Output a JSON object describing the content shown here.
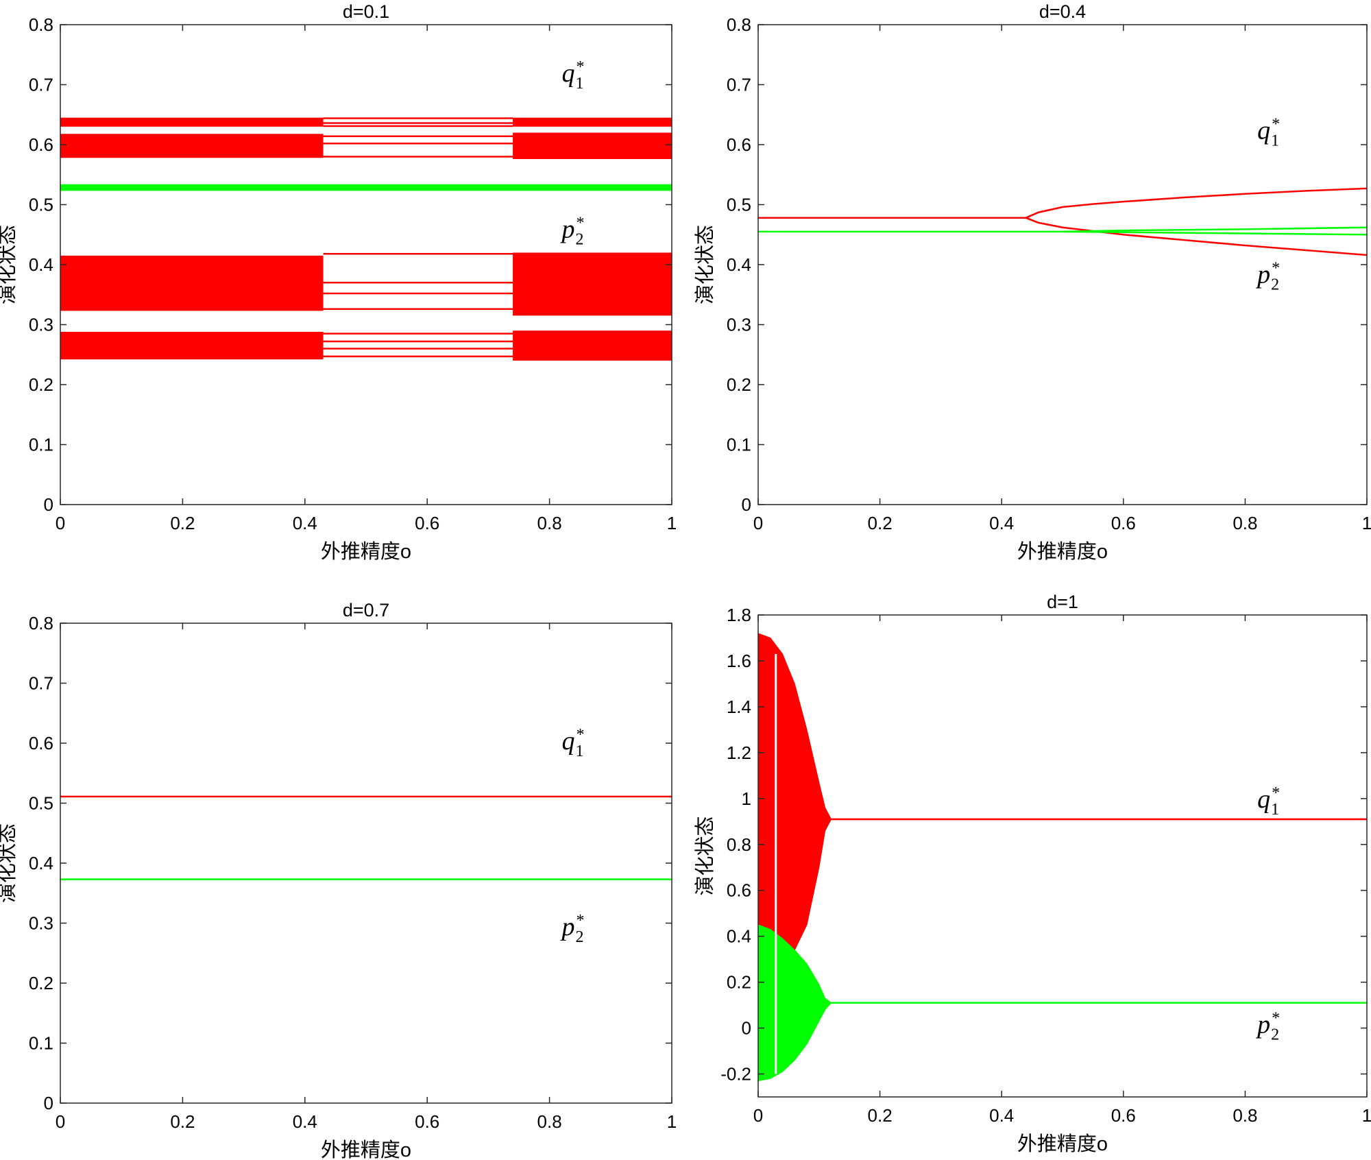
{
  "colors": {
    "q": "#ff0000",
    "p": "#00ff00",
    "axes": "#262626"
  },
  "chart_data": [
    {
      "type": "scatter",
      "title": "d=0.1",
      "xlabel": "外推精度o",
      "ylabel": "演化状态",
      "xlim": [
        0,
        1
      ],
      "ylim": [
        0,
        0.8
      ],
      "xticks": [
        "0",
        "0.2",
        "0.4",
        "0.6",
        "0.8",
        "1"
      ],
      "yticks": [
        "0",
        "0.1",
        "0.2",
        "0.3",
        "0.4",
        "0.5",
        "0.6",
        "0.7",
        "0.8"
      ],
      "grid": false,
      "annotations": [
        {
          "base": "q",
          "sub": "1",
          "sup": "*",
          "x": 0.82,
          "y": 0.705
        },
        {
          "base": "p",
          "sub": "2",
          "sup": "*",
          "x": 0.82,
          "y": 0.445
        }
      ],
      "series": [
        {
          "color_key": "q",
          "bands": [
            {
              "x": [
                0,
                0.43
              ],
              "y": [
                0.63,
                0.645
              ]
            },
            {
              "x": [
                0,
                0.43
              ],
              "y": [
                0.578,
                0.618
              ]
            },
            {
              "x": [
                0,
                0.43
              ],
              "y": [
                0.323,
                0.415
              ]
            },
            {
              "x": [
                0,
                0.43
              ],
              "y": [
                0.242,
                0.288
              ]
            },
            {
              "x": [
                0.74,
                1
              ],
              "y": [
                0.63,
                0.645
              ]
            },
            {
              "x": [
                0.74,
                1
              ],
              "y": [
                0.576,
                0.62
              ]
            },
            {
              "x": [
                0.74,
                1
              ],
              "y": [
                0.315,
                0.42
              ]
            },
            {
              "x": [
                0.74,
                1
              ],
              "y": [
                0.24,
                0.29
              ]
            }
          ],
          "lines": [
            {
              "x": [
                0.43,
                0.74
              ],
              "y": [
                0.644,
                0.644
              ]
            },
            {
              "x": [
                0.43,
                0.74
              ],
              "y": [
                0.636,
                0.636
              ]
            },
            {
              "x": [
                0.43,
                0.74
              ],
              "y": [
                0.631,
                0.631
              ]
            },
            {
              "x": [
                0.43,
                0.74
              ],
              "y": [
                0.614,
                0.614
              ]
            },
            {
              "x": [
                0.43,
                0.74
              ],
              "y": [
                0.602,
                0.602
              ]
            },
            {
              "x": [
                0.43,
                0.74
              ],
              "y": [
                0.58,
                0.58
              ]
            },
            {
              "x": [
                0.43,
                0.74
              ],
              "y": [
                0.418,
                0.418
              ]
            },
            {
              "x": [
                0.43,
                0.74
              ],
              "y": [
                0.37,
                0.37
              ]
            },
            {
              "x": [
                0.43,
                0.74
              ],
              "y": [
                0.352,
                0.352
              ]
            },
            {
              "x": [
                0.43,
                0.74
              ],
              "y": [
                0.326,
                0.326
              ]
            },
            {
              "x": [
                0.43,
                0.74
              ],
              "y": [
                0.285,
                0.285
              ]
            },
            {
              "x": [
                0.43,
                0.74
              ],
              "y": [
                0.272,
                0.272
              ]
            },
            {
              "x": [
                0.43,
                0.74
              ],
              "y": [
                0.26,
                0.26
              ]
            },
            {
              "x": [
                0.43,
                0.74
              ],
              "y": [
                0.247,
                0.247
              ]
            }
          ]
        },
        {
          "color_key": "p",
          "bands": [
            {
              "x": [
                0,
                1
              ],
              "y": [
                0.523,
                0.534
              ]
            }
          ]
        }
      ]
    },
    {
      "type": "line",
      "title": "d=0.4",
      "xlabel": "外推精度o",
      "ylabel": "演化状态",
      "xlim": [
        0,
        1
      ],
      "ylim": [
        0,
        0.8
      ],
      "xticks": [
        "0",
        "0.2",
        "0.4",
        "0.6",
        "0.8",
        "1"
      ],
      "yticks": [
        "0",
        "0.1",
        "0.2",
        "0.3",
        "0.4",
        "0.5",
        "0.6",
        "0.7",
        "0.8"
      ],
      "grid": false,
      "annotations": [
        {
          "base": "q",
          "sub": "1",
          "sup": "*",
          "x": 0.82,
          "y": 0.61
        },
        {
          "base": "p",
          "sub": "2",
          "sup": "*",
          "x": 0.82,
          "y": 0.37
        }
      ],
      "series": [
        {
          "color_key": "q",
          "lines": [
            {
              "x": [
                0,
                0.44,
                0.46,
                0.5,
                0.55,
                0.6,
                0.7,
                0.8,
                0.9,
                1
              ],
              "y": [
                0.478,
                0.478,
                0.487,
                0.496,
                0.501,
                0.505,
                0.512,
                0.518,
                0.523,
                0.527
              ]
            },
            {
              "x": [
                0.44,
                0.46,
                0.5,
                0.55,
                0.6,
                0.7,
                0.8,
                0.9,
                1
              ],
              "y": [
                0.478,
                0.47,
                0.462,
                0.456,
                0.45,
                0.441,
                0.432,
                0.424,
                0.416
              ]
            }
          ]
        },
        {
          "color_key": "p",
          "lines": [
            {
              "x": [
                0,
                0.5,
                0.6,
                0.8,
                1
              ],
              "y": [
                0.455,
                0.455,
                0.457,
                0.459,
                0.462
              ]
            },
            {
              "x": [
                0.5,
                0.6,
                0.8,
                1
              ],
              "y": [
                0.455,
                0.454,
                0.452,
                0.45
              ]
            }
          ]
        }
      ]
    },
    {
      "type": "line",
      "title": "d=0.7",
      "xlabel": "外推精度o",
      "ylabel": "演化状态",
      "xlim": [
        0,
        1
      ],
      "ylim": [
        0,
        0.8
      ],
      "xticks": [
        "0",
        "0.2",
        "0.4",
        "0.6",
        "0.8",
        "1"
      ],
      "yticks": [
        "0",
        "0.1",
        "0.2",
        "0.3",
        "0.4",
        "0.5",
        "0.6",
        "0.7",
        "0.8"
      ],
      "grid": false,
      "annotations": [
        {
          "base": "q",
          "sub": "1",
          "sup": "*",
          "x": 0.82,
          "y": 0.59
        },
        {
          "base": "p",
          "sub": "2",
          "sup": "*",
          "x": 0.82,
          "y": 0.28
        }
      ],
      "series": [
        {
          "color_key": "q",
          "lines": [
            {
              "x": [
                0,
                1
              ],
              "y": [
                0.511,
                0.511
              ]
            }
          ]
        },
        {
          "color_key": "p",
          "lines": [
            {
              "x": [
                0,
                1
              ],
              "y": [
                0.373,
                0.373
              ]
            }
          ]
        }
      ]
    },
    {
      "type": "area",
      "title": "d=1",
      "xlabel": "外推精度o",
      "ylabel": "演化状态",
      "xlim": [
        0,
        1
      ],
      "ylim": [
        -0.3,
        1.8
      ],
      "yaxis_start": -0.25,
      "xticks": [
        "0",
        "0.2",
        "0.4",
        "0.6",
        "0.8",
        "1"
      ],
      "yticks": [
        "-0.2",
        "0",
        "0.2",
        "0.4",
        "0.6",
        "0.8",
        "1",
        "1.2",
        "1.4",
        "1.6",
        "1.8"
      ],
      "grid": false,
      "annotations": [
        {
          "base": "q",
          "sub": "1",
          "sup": "*",
          "x": 0.82,
          "y": 0.96
        },
        {
          "base": "p",
          "sub": "2",
          "sup": "*",
          "x": 0.82,
          "y": -0.02
        }
      ],
      "series": [
        {
          "color_key": "q",
          "envelope": {
            "x": [
              0,
              0.02,
              0.04,
              0.06,
              0.08,
              0.1,
              0.11,
              0.12
            ],
            "upper": [
              1.72,
              1.7,
              1.63,
              1.5,
              1.3,
              1.07,
              0.96,
              0.91
            ],
            "lower": [
              0.44,
              0.41,
              0.38,
              0.34,
              0.45,
              0.7,
              0.86,
              0.91
            ]
          },
          "lines": [
            {
              "x": [
                0.12,
                1
              ],
              "y": [
                0.91,
                0.91
              ]
            }
          ]
        },
        {
          "color_key": "p",
          "envelope": {
            "x": [
              0,
              0.02,
              0.04,
              0.06,
              0.08,
              0.1,
              0.11,
              0.12
            ],
            "upper": [
              0.45,
              0.43,
              0.39,
              0.34,
              0.28,
              0.19,
              0.13,
              0.11
            ],
            "lower": [
              -0.23,
              -0.22,
              -0.19,
              -0.14,
              -0.07,
              0.03,
              0.08,
              0.11
            ]
          },
          "lines": [
            {
              "x": [
                0.12,
                1
              ],
              "y": [
                0.11,
                0.11
              ]
            }
          ]
        }
      ]
    }
  ]
}
